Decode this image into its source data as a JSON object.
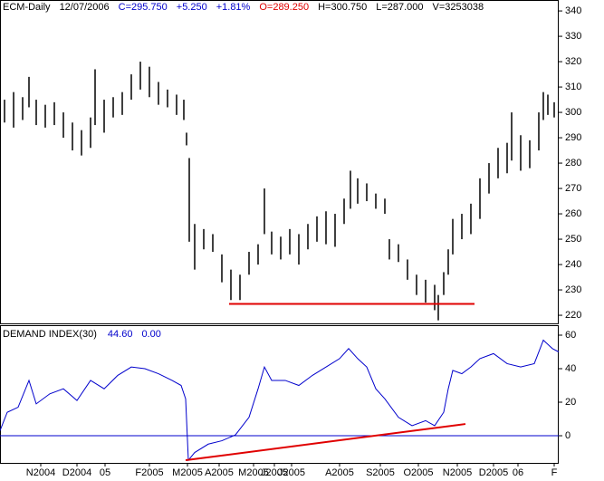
{
  "chart_data": [
    {
      "type": "range_bar",
      "header": [
        {
          "text": "ECM-Daily",
          "color": "#000000"
        },
        {
          "text": "12/07/2006",
          "color": "#000000"
        },
        {
          "text": "C=295.750",
          "color": "#0000cc"
        },
        {
          "text": "+5.250",
          "color": "#0000cc"
        },
        {
          "text": "+1.81%",
          "color": "#0000cc"
        },
        {
          "text": "O=289.250",
          "color": "#e00000"
        },
        {
          "text": "H=300.750",
          "color": "#000000"
        },
        {
          "text": "L=287.000",
          "color": "#000000"
        },
        {
          "text": "V=3253038",
          "color": "#000000"
        }
      ],
      "color": "#000000",
      "x": [
        2.5,
        7.5,
        12.5,
        16,
        20,
        25,
        30,
        35,
        40,
        45,
        50,
        52.5,
        57.5,
        62.5,
        67.5,
        72.5,
        77.5,
        82.5,
        87.5,
        92.5,
        97.5,
        101.5,
        103,
        104.5,
        107.5,
        112.5,
        117.5,
        122.5,
        127.5,
        132.5,
        137.5,
        142.5,
        146,
        150,
        155,
        160,
        165,
        170,
        175,
        180,
        185,
        190,
        193.5,
        197.5,
        202.5,
        207.5,
        212.5,
        215,
        220,
        225,
        230,
        235,
        240,
        242,
        245,
        247.5,
        250,
        255,
        260,
        265,
        270,
        275,
        280,
        282.5,
        287.5,
        292.5,
        297.5,
        300,
        302.5,
        306
      ],
      "high": [
        305,
        308,
        306,
        314,
        305,
        303,
        304,
        300,
        296,
        293,
        298,
        317,
        305,
        306,
        308,
        315,
        320,
        318,
        312,
        309,
        307,
        305,
        292,
        282,
        256,
        254,
        252,
        244,
        238,
        236,
        245,
        248,
        270,
        253,
        251,
        254,
        252,
        256,
        259,
        261,
        260,
        266,
        277,
        274,
        272,
        268,
        266,
        250,
        248,
        242,
        236,
        234,
        232,
        228,
        237,
        246,
        258,
        260,
        264,
        274,
        280,
        286,
        288,
        300,
        291,
        289,
        300,
        308,
        307,
        304
      ],
      "low": [
        296,
        294,
        297,
        302,
        295,
        294,
        295,
        290,
        285,
        283,
        286,
        295,
        292,
        298,
        299,
        305,
        309,
        306,
        303,
        302,
        299,
        297,
        287,
        249,
        238,
        246,
        245,
        233,
        226,
        226,
        236,
        240,
        252,
        244,
        242,
        244,
        240,
        246,
        249,
        248,
        247,
        256,
        262,
        264,
        265,
        262,
        260,
        242,
        241,
        234,
        228,
        225,
        222,
        218,
        228,
        236,
        244,
        250,
        252,
        258,
        268,
        274,
        276,
        281,
        277,
        278,
        285,
        297,
        299,
        298
      ],
      "xlim": [
        0,
        308.5
      ],
      "ylim": [
        216.8,
        343.6
      ],
      "yticks": [
        220,
        230,
        240,
        250,
        260,
        270,
        280,
        290,
        300,
        310,
        320,
        330,
        340
      ],
      "lines": [
        {
          "color": "#e00000",
          "x": [
            126.5,
            262
          ],
          "y": [
            224.5,
            224.5
          ]
        }
      ]
    },
    {
      "type": "line",
      "title": "DEMAND INDEX(30)",
      "header": [
        {
          "text": "44.60",
          "color": "#0000cc"
        },
        {
          "text": "0.00",
          "color": "#0000cc"
        }
      ],
      "color": "#0000cc",
      "x": [
        0,
        4,
        10,
        16,
        20,
        27.5,
        35,
        42.5,
        50,
        57.5,
        65,
        72.5,
        80,
        87.5,
        95,
        100,
        102.5,
        104,
        107.5,
        115,
        122.5,
        130,
        137.5,
        142.5,
        146,
        150,
        157.5,
        165,
        172.5,
        180,
        187.5,
        192.5,
        197.5,
        202.5,
        207.5,
        212.5,
        220,
        227.5,
        235,
        240,
        245,
        247.5,
        250,
        255,
        260,
        265,
        272.5,
        280,
        287.5,
        295,
        300,
        305,
        308.5
      ],
      "values": [
        3,
        14,
        17,
        33,
        19,
        25,
        28,
        21,
        33,
        28,
        36,
        41,
        40,
        37,
        33,
        30,
        22,
        -14.6,
        -10,
        -5,
        -3,
        0.5,
        11,
        28,
        41,
        33,
        33,
        30,
        36,
        41,
        46,
        52,
        46,
        41,
        28,
        22,
        11,
        6,
        9,
        6,
        14,
        28,
        39,
        37,
        41,
        46,
        49,
        43,
        41,
        43,
        57,
        52,
        50
      ],
      "xlim": [
        0,
        308.5
      ],
      "ylim": [
        -16.2,
        65.4
      ],
      "yticks": [
        0,
        20,
        40,
        60
      ],
      "zero_line": 0,
      "xticks": [
        {
          "value": 22.5,
          "label": "N2004"
        },
        {
          "value": 42.5,
          "label": "D2004"
        },
        {
          "value": 58,
          "label": "05"
        },
        {
          "value": 82.5,
          "label": "F2005"
        },
        {
          "value": 103.5,
          "label": "M2005"
        },
        {
          "value": 121,
          "label": "A2005"
        },
        {
          "value": 140,
          "label": "M2005"
        },
        {
          "value": 151.5,
          "label": "J2005"
        },
        {
          "value": 161,
          "label": "J2005"
        },
        {
          "value": 187.5,
          "label": "A2005"
        },
        {
          "value": 210,
          "label": "S2005"
        },
        {
          "value": 231,
          "label": "O2005"
        },
        {
          "value": 252.5,
          "label": "N2005"
        },
        {
          "value": 272.5,
          "label": "D2005"
        },
        {
          "value": 286,
          "label": "06"
        },
        {
          "value": 306,
          "label": "F"
        }
      ],
      "lines": [
        {
          "color": "#e00000",
          "x": [
            102.5,
            257
          ],
          "y": [
            -14.6,
            7
          ]
        }
      ]
    }
  ]
}
